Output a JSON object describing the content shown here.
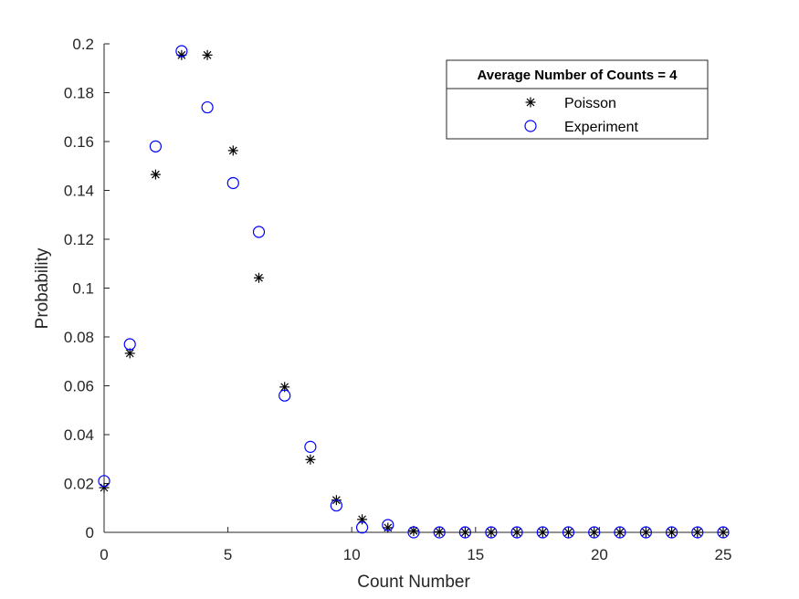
{
  "chart_data": {
    "type": "scatter",
    "xlabel": "Count Number",
    "ylabel": "Probability",
    "xlim": [
      0,
      25
    ],
    "ylim": [
      0,
      0.2
    ],
    "xticks": [
      0,
      5,
      10,
      15,
      20,
      25
    ],
    "yticks": [
      0,
      0.02,
      0.04,
      0.06,
      0.08,
      0.1,
      0.12,
      0.14,
      0.16,
      0.18,
      0.2
    ],
    "grid": false,
    "legend": {
      "title": "Average Number of Counts = 4",
      "placement": "top-right"
    },
    "series": [
      {
        "name": "Poisson",
        "marker": "asterisk",
        "color": "#000000",
        "x": [
          0,
          1.04,
          2.08,
          3.13,
          4.17,
          5.21,
          6.25,
          7.29,
          8.33,
          9.38,
          10.42,
          11.46,
          12.5,
          13.54,
          14.58,
          15.63,
          16.67,
          17.71,
          18.75,
          19.79,
          20.83,
          21.88,
          22.92,
          23.96,
          25
        ],
        "y": [
          0.0183,
          0.0733,
          0.1465,
          0.1954,
          0.1954,
          0.1563,
          0.1042,
          0.0595,
          0.0298,
          0.0132,
          0.0053,
          0.0019,
          0.0006,
          0.0002,
          0,
          0,
          0,
          0,
          0,
          0,
          0,
          0,
          0,
          0,
          0
        ]
      },
      {
        "name": "Experiment",
        "marker": "circle",
        "color": "#0000ff",
        "x": [
          0,
          1.04,
          2.08,
          3.13,
          4.17,
          5.21,
          6.25,
          7.29,
          8.33,
          9.38,
          10.42,
          11.46,
          12.5,
          13.54,
          14.58,
          15.63,
          16.67,
          17.71,
          18.75,
          19.79,
          20.83,
          21.88,
          22.92,
          23.96,
          25
        ],
        "y": [
          0.021,
          0.077,
          0.158,
          0.197,
          0.174,
          0.143,
          0.123,
          0.056,
          0.035,
          0.011,
          0.002,
          0.003,
          0,
          0,
          0,
          0,
          0,
          0,
          0,
          0,
          0,
          0,
          0,
          0,
          0
        ]
      }
    ]
  }
}
